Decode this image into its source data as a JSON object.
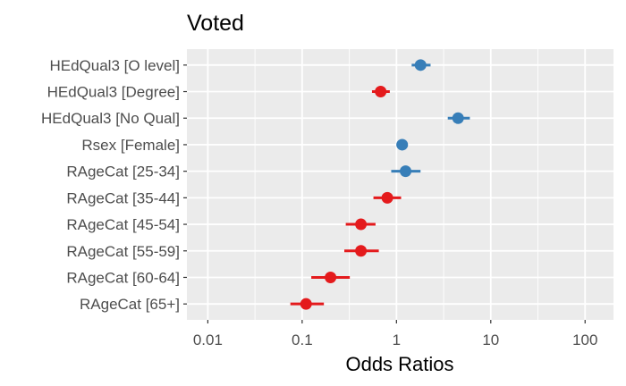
{
  "chart_data": {
    "type": "scatter",
    "title": "Voted",
    "xlabel": "Odds Ratios",
    "ylabel": "",
    "x_scale": "log10",
    "xlim": [
      0.006,
      200
    ],
    "x_ticks": [
      0.01,
      0.1,
      1,
      10,
      100
    ],
    "x_tick_labels": [
      "0.01",
      "0.1",
      "1",
      "10",
      "100"
    ],
    "grid": true,
    "legend": "none",
    "colors": {
      "above_one": "#377eb8",
      "below_one": "#e41a1c",
      "panel": "#ebebeb",
      "grid": "#ffffff"
    },
    "terms": [
      {
        "label": "HEdQual3 [O level]",
        "or": 1.8,
        "ci": [
          1.45,
          2.3
        ]
      },
      {
        "label": "HEdQual3 [Degree]",
        "or": 0.68,
        "ci": [
          0.55,
          0.85
        ]
      },
      {
        "label": "HEdQual3 [No Qual]",
        "or": 4.5,
        "ci": [
          3.5,
          6.0
        ]
      },
      {
        "label": "Rsex [Female]",
        "or": 1.15,
        "ci": [
          1.0,
          1.32
        ]
      },
      {
        "label": "RAgeCat [25-34]",
        "or": 1.25,
        "ci": [
          0.88,
          1.8
        ]
      },
      {
        "label": "RAgeCat [35-44]",
        "or": 0.8,
        "ci": [
          0.57,
          1.12
        ]
      },
      {
        "label": "RAgeCat [45-54]",
        "or": 0.42,
        "ci": [
          0.29,
          0.6
        ]
      },
      {
        "label": "RAgeCat [55-59]",
        "or": 0.42,
        "ci": [
          0.28,
          0.65
        ]
      },
      {
        "label": "RAgeCat [60-64]",
        "or": 0.2,
        "ci": [
          0.125,
          0.32
        ]
      },
      {
        "label": "RAgeCat [65+]",
        "or": 0.11,
        "ci": [
          0.075,
          0.17
        ]
      }
    ]
  }
}
